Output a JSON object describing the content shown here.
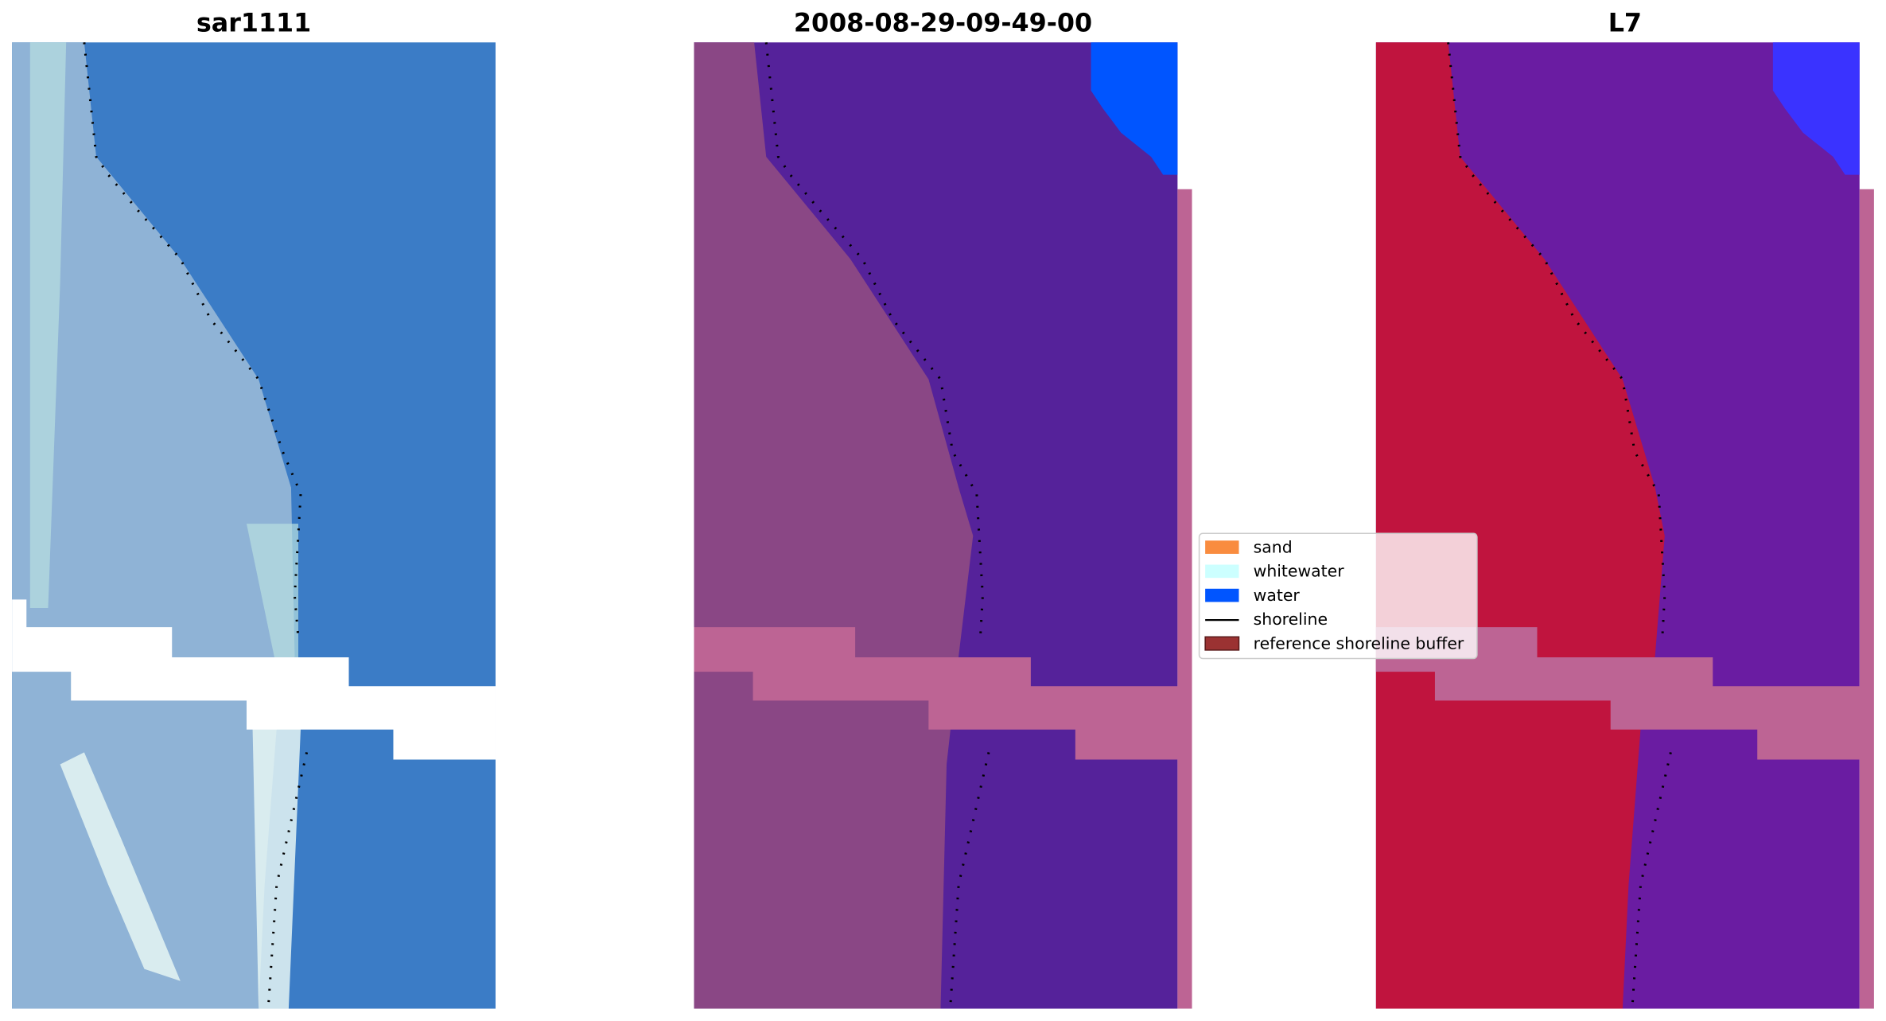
{
  "panels": [
    {
      "title": "sar1111"
    },
    {
      "title": "2008-08-29-09-49-00"
    },
    {
      "title": "L7"
    }
  ],
  "legend": {
    "items": [
      {
        "label": "sand"
      },
      {
        "label": "whitewater"
      },
      {
        "label": "water"
      },
      {
        "label": "shoreline"
      },
      {
        "label": "reference shoreline buffer"
      }
    ]
  }
}
